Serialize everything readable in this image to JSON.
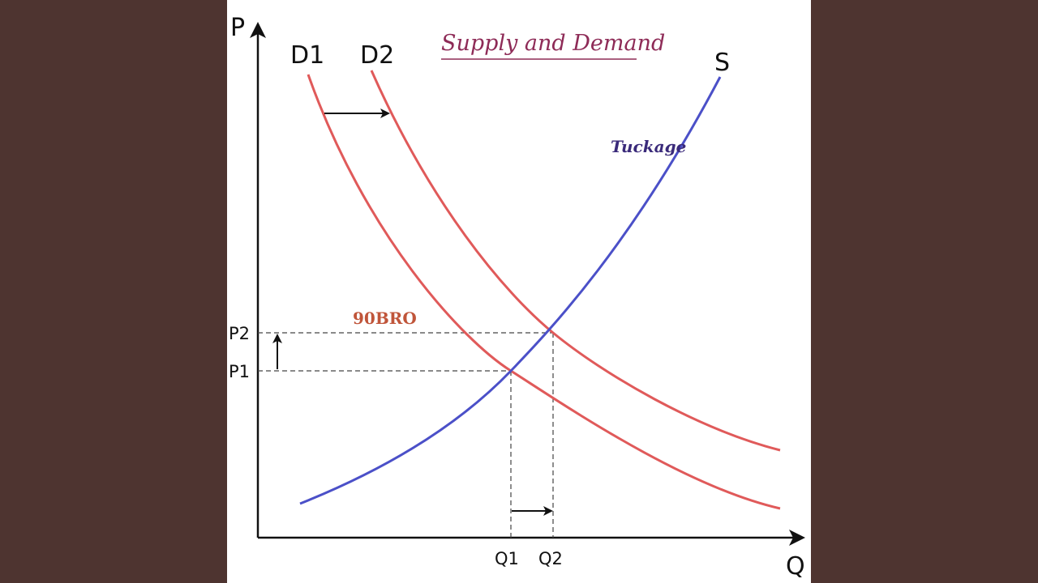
{
  "title": "Supply and Demand",
  "axes": {
    "y_label": "P",
    "x_label": "Q"
  },
  "curves": {
    "d1_label": "D1",
    "d2_label": "D2",
    "s_label": "S"
  },
  "ticks": {
    "p1": "P1",
    "p2": "P2",
    "q1": "Q1",
    "q2": "Q2"
  },
  "watermarks": {
    "red": "90BRO",
    "blue": "Tuckage"
  },
  "colors": {
    "demand": "#e05a5a",
    "supply": "#4b50c8",
    "title": "#8e2b57",
    "background": "#4e3430"
  }
}
